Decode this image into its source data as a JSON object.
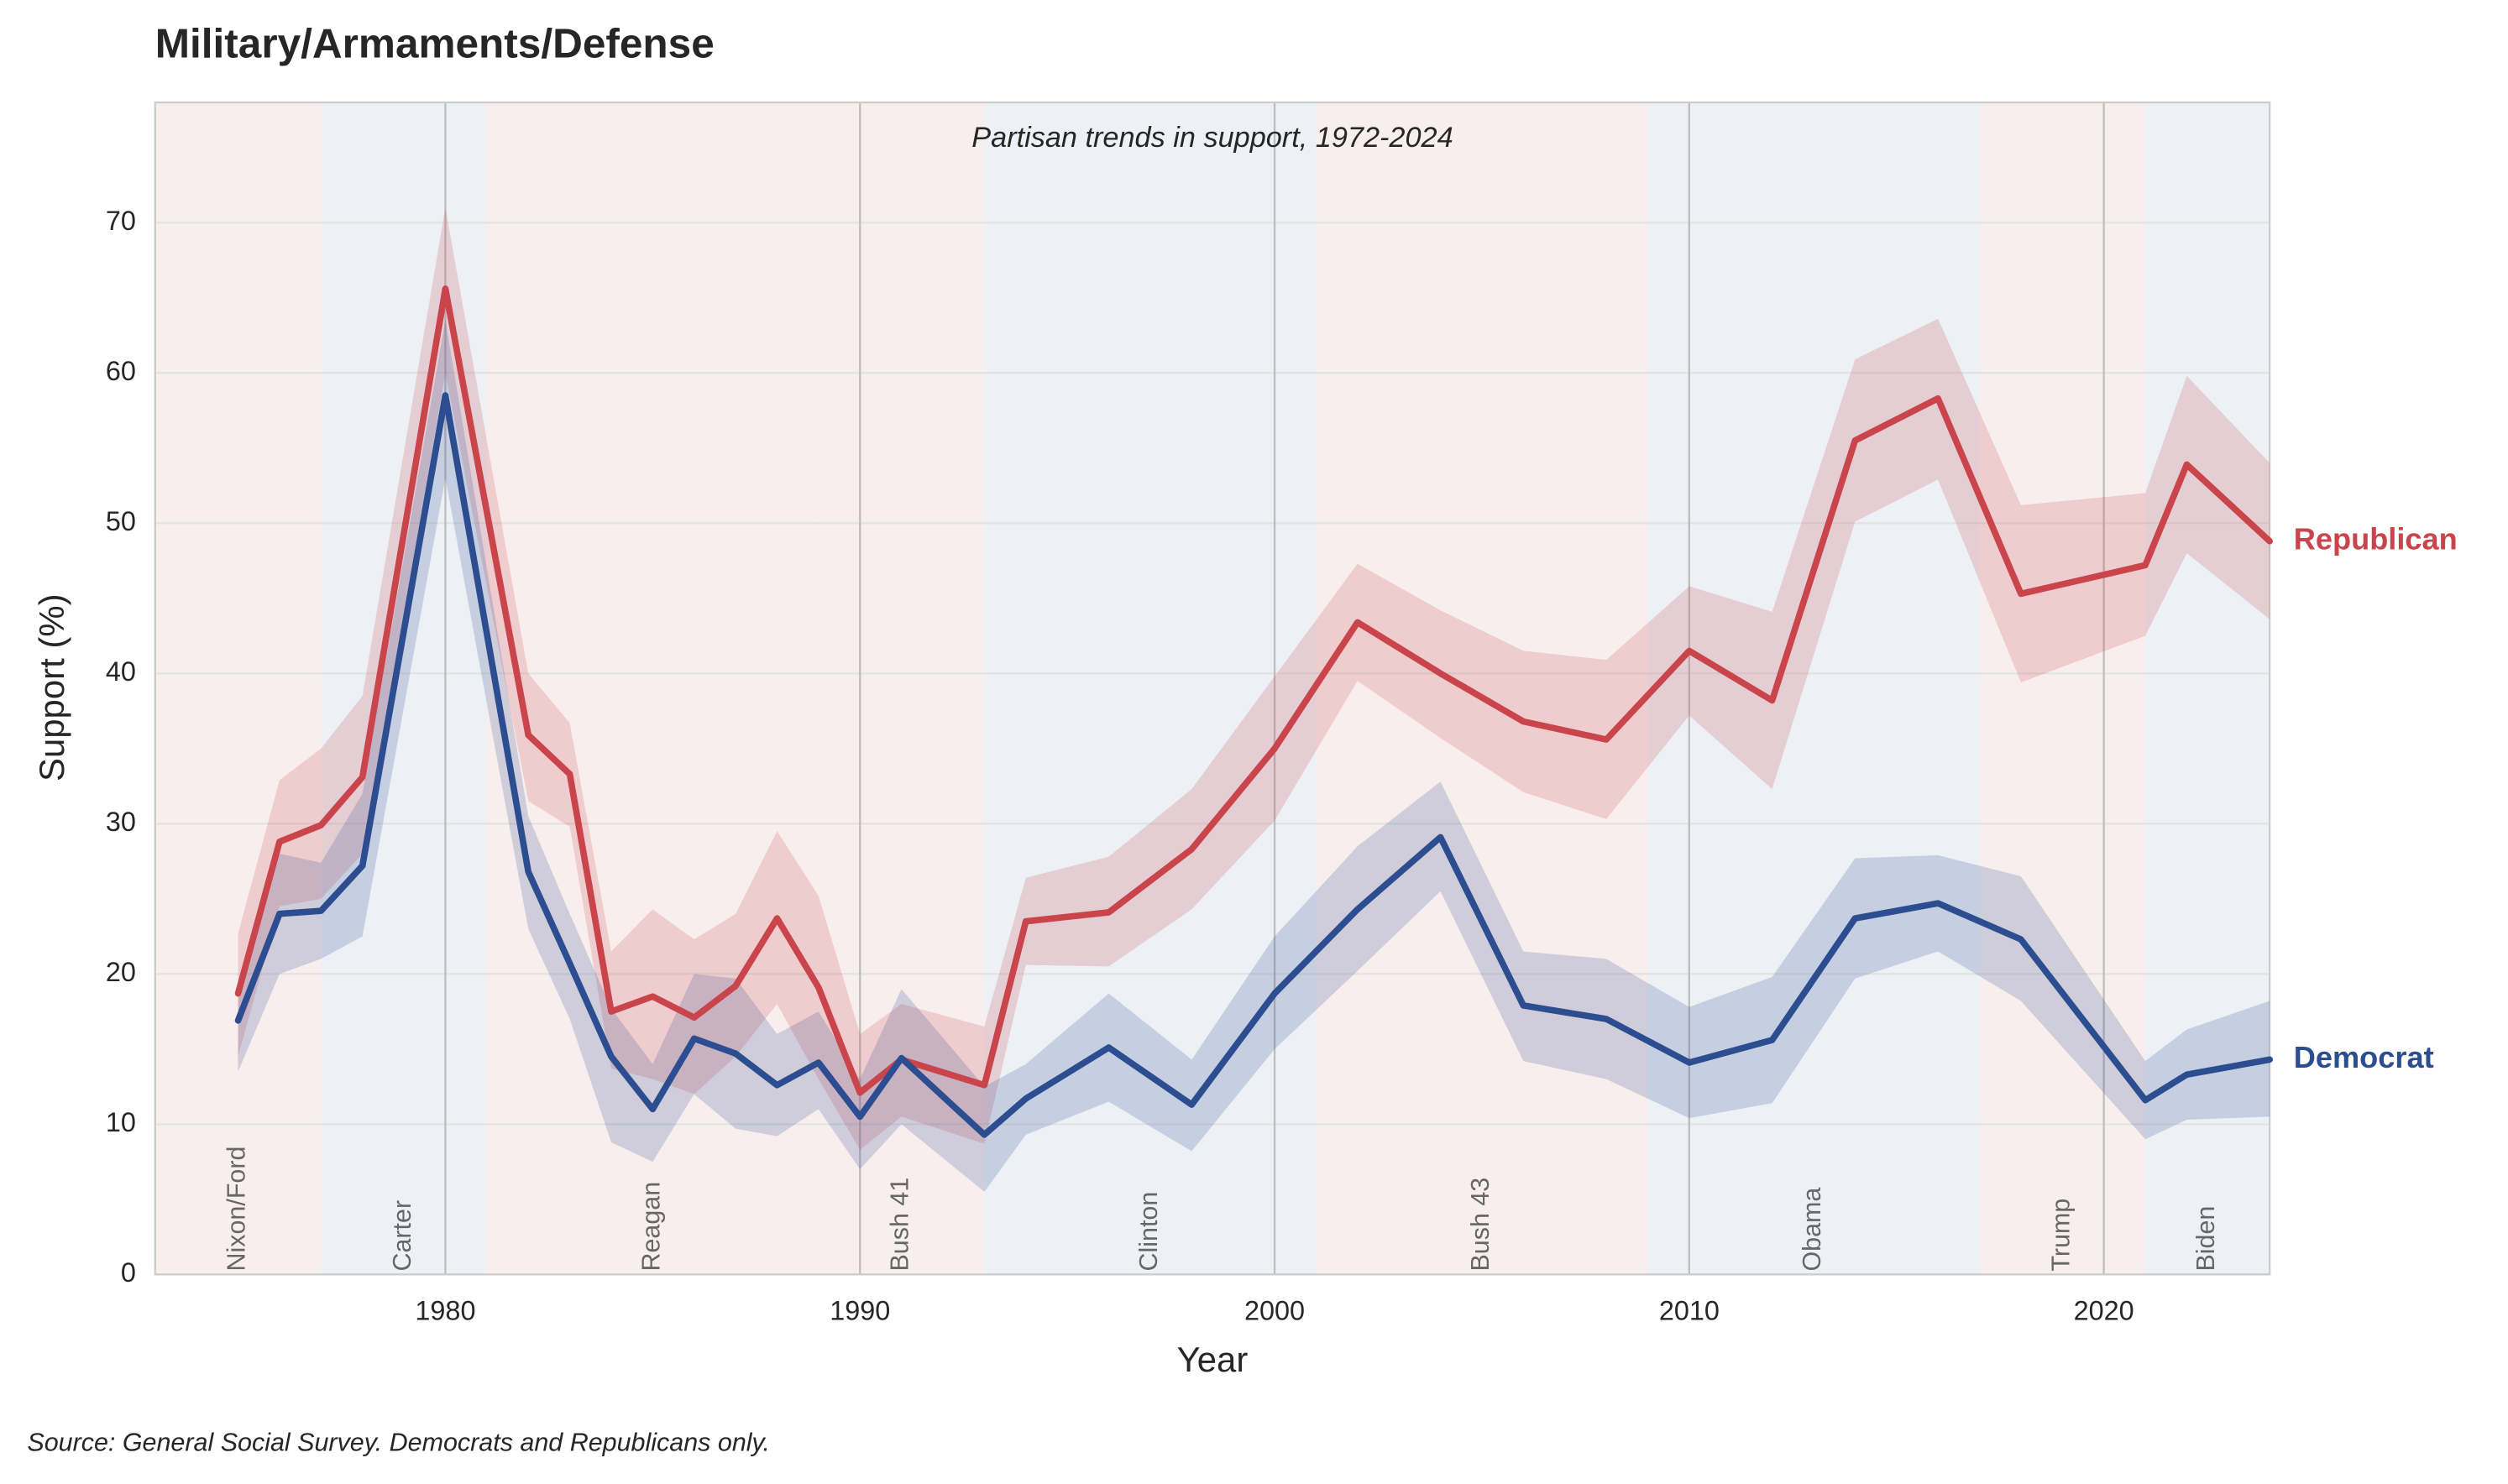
{
  "chart_data": {
    "type": "line",
    "title": "Military/Armaments/Defense",
    "subtitle": "Partisan trends in support, 1972-2024",
    "x_label": "Year",
    "y_label": "Support (%)",
    "source": "Source: General Social Survey. Democrats and Republicans only.",
    "xlim": [
      1973,
      2024
    ],
    "ylim": [
      0,
      78
    ],
    "xticks": [
      1980,
      1990,
      2000,
      2010,
      2020
    ],
    "yticks": [
      0,
      10,
      20,
      30,
      40,
      50,
      60,
      70
    ],
    "grid": true,
    "x": [
      1975,
      1976,
      1977,
      1978,
      1980,
      1982,
      1983,
      1984,
      1985,
      1986,
      1987,
      1988,
      1989,
      1990,
      1991,
      1993,
      1994,
      1996,
      1998,
      2000,
      2002,
      2004,
      2006,
      2008,
      2010,
      2012,
      2014,
      2016,
      2018,
      2021,
      2022,
      2024
    ],
    "series": [
      {
        "name": "Republican",
        "color": "#c9444b",
        "values": [
          18.7,
          28.8,
          29.9,
          33.1,
          65.6,
          35.9,
          33.3,
          17.5,
          18.5,
          17.1,
          19.2,
          23.7,
          19.1,
          12.1,
          14.3,
          12.6,
          23.5,
          24.1,
          28.3,
          35.0,
          43.4,
          40.0,
          36.8,
          35.6,
          41.5,
          38.2,
          55.5,
          58.3,
          45.3,
          47.2,
          53.9,
          48.8
        ],
        "upper": [
          22.7,
          32.9,
          35.0,
          38.5,
          71.0,
          40.0,
          36.7,
          21.5,
          24.3,
          22.3,
          24.0,
          29.5,
          25.2,
          16.0,
          18.0,
          16.5,
          26.4,
          27.8,
          32.3,
          39.8,
          47.3,
          44.2,
          41.5,
          40.9,
          45.8,
          44.1,
          60.9,
          63.6,
          51.2,
          52.0,
          59.8,
          54.0
        ],
        "lower": [
          14.5,
          24.5,
          25.0,
          28.0,
          60.0,
          31.5,
          29.8,
          13.7,
          13.0,
          12.0,
          14.5,
          18.0,
          13.0,
          8.3,
          10.5,
          8.7,
          20.6,
          20.5,
          24.3,
          30.2,
          39.5,
          35.7,
          32.1,
          30.3,
          37.2,
          32.3,
          50.1,
          52.9,
          39.4,
          42.5,
          48.0,
          43.6
        ]
      },
      {
        "name": "Democrat",
        "color": "#2c4d8f",
        "values": [
          16.9,
          24.0,
          24.2,
          27.2,
          58.5,
          26.8,
          20.7,
          14.5,
          11.0,
          15.7,
          14.7,
          12.6,
          14.1,
          10.5,
          14.4,
          9.3,
          11.7,
          15.1,
          11.3,
          18.7,
          24.3,
          29.1,
          17.9,
          17.0,
          14.1,
          15.6,
          23.7,
          24.7,
          22.3,
          11.6,
          13.3,
          14.3
        ],
        "upper": [
          19.5,
          28.0,
          27.4,
          32.0,
          63.5,
          30.5,
          24.0,
          17.7,
          14.0,
          20.0,
          19.7,
          16.0,
          17.5,
          13.0,
          19.0,
          12.5,
          14.0,
          18.7,
          14.3,
          22.5,
          28.5,
          32.8,
          21.5,
          21.0,
          17.8,
          19.8,
          27.7,
          27.9,
          26.5,
          14.2,
          16.3,
          18.2
        ],
        "lower": [
          13.5,
          20.0,
          21.0,
          22.5,
          53.0,
          23.0,
          17.0,
          8.8,
          7.5,
          12.0,
          9.7,
          9.2,
          11.0,
          7.0,
          10.0,
          5.5,
          9.3,
          11.5,
          8.2,
          15.0,
          20.2,
          25.5,
          14.2,
          13.0,
          10.4,
          11.4,
          19.7,
          21.5,
          18.2,
          9.0,
          10.3,
          10.5
        ]
      }
    ],
    "periods": [
      {
        "label": "Nixon/Ford",
        "start": 1973,
        "end": 1977,
        "color": "#f9eeee"
      },
      {
        "label": "Carter",
        "start": 1977,
        "end": 1981,
        "color": "#edf0f5"
      },
      {
        "label": "Reagan",
        "start": 1981,
        "end": 1989,
        "color": "#f9eeee"
      },
      {
        "label": "Bush 41",
        "start": 1989,
        "end": 1993,
        "color": "#f9eeee"
      },
      {
        "label": "Clinton",
        "start": 1993,
        "end": 2001,
        "color": "#edf0f5"
      },
      {
        "label": "Bush 43",
        "start": 2001,
        "end": 2009,
        "color": "#f9eeee"
      },
      {
        "label": "Obama",
        "start": 2009,
        "end": 2017,
        "color": "#edf0f5"
      },
      {
        "label": "Trump",
        "start": 2017,
        "end": 2021,
        "color": "#f9eeee"
      },
      {
        "label": "Biden",
        "start": 2021,
        "end": 2024,
        "color": "#edf0f5"
      }
    ]
  }
}
